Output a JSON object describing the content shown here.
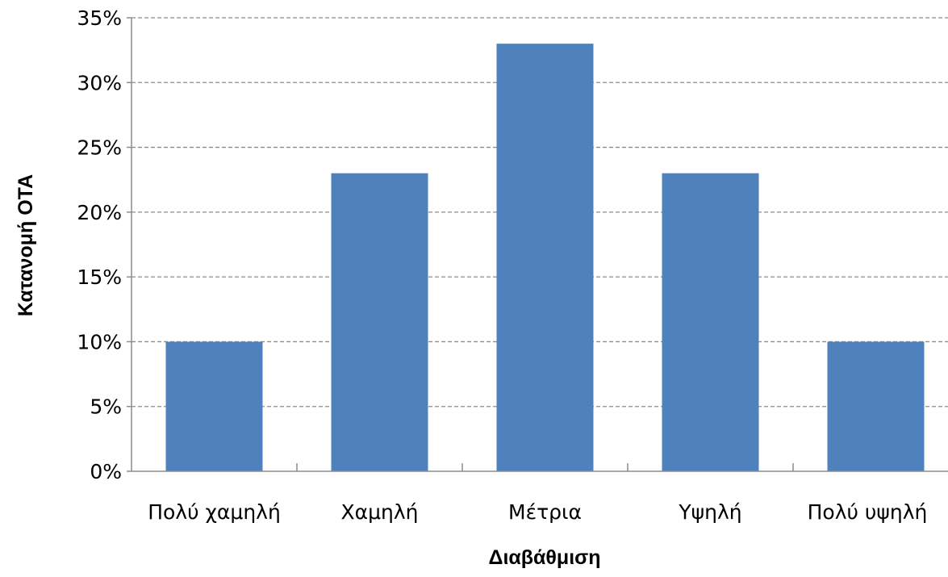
{
  "chart_data": {
    "type": "bar",
    "categories": [
      "Πολύ χαμηλή",
      "Χαμηλή",
      "Μέτρια",
      "Υψηλή",
      "Πολύ υψηλή"
    ],
    "values": [
      10,
      23,
      33,
      23,
      10
    ],
    "value_unit": "%",
    "xlabel": "Διαβάθμιση",
    "ylabel": "Κατανομή ΟΤΑ",
    "ylim": [
      0,
      35
    ],
    "y_ticks": [
      0,
      5,
      10,
      15,
      20,
      25,
      30,
      35
    ],
    "y_tick_labels": [
      "0%",
      "5%",
      "10%",
      "15%",
      "20%",
      "25%",
      "30%",
      "35%"
    ],
    "grid": "horizontal-dashed",
    "legend": "none",
    "bar_color": "#4f81bd"
  }
}
